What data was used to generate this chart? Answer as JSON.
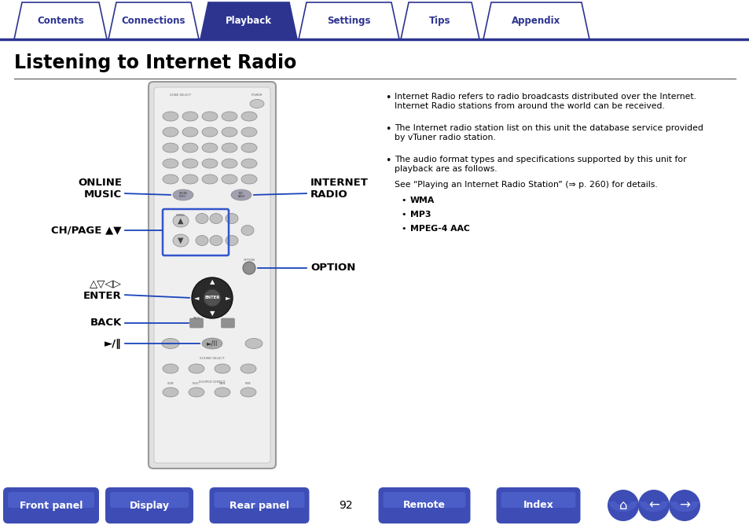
{
  "title": "Listening to Internet Radio",
  "tab_labels": [
    "Contents",
    "Connections",
    "Playback",
    "Settings",
    "Tips",
    "Appendix"
  ],
  "active_tab": 2,
  "tab_color_active": "#2d3490",
  "tab_color_inactive": "#ffffff",
  "tab_text_color_active": "#ffffff",
  "tab_text_color_inactive": "#2d3490",
  "tab_border_color": "#2d3490",
  "bullet_points": [
    "Internet Radio refers to radio broadcasts distributed over the Internet.\nInternet Radio stations from around the world can be received.",
    "The Internet radio station list on this unit the database service provided\nby vTuner radio station.",
    "The audio format types and specifications supported by this unit for\nplayback are as follows.\nSee “Playing an Internet Radio Station” (⇒ p. 260) for details."
  ],
  "sub_bullets": [
    "WMA",
    "MP3",
    "MPEG-4 AAC"
  ],
  "bottom_buttons": [
    "Front panel",
    "Display",
    "Rear panel",
    "Remote",
    "Index"
  ],
  "page_number": "92",
  "button_color": "#3d4db5",
  "bg_color": "#ffffff",
  "text_color": "#000000",
  "title_color": "#000000",
  "line_color": "#2d3490"
}
